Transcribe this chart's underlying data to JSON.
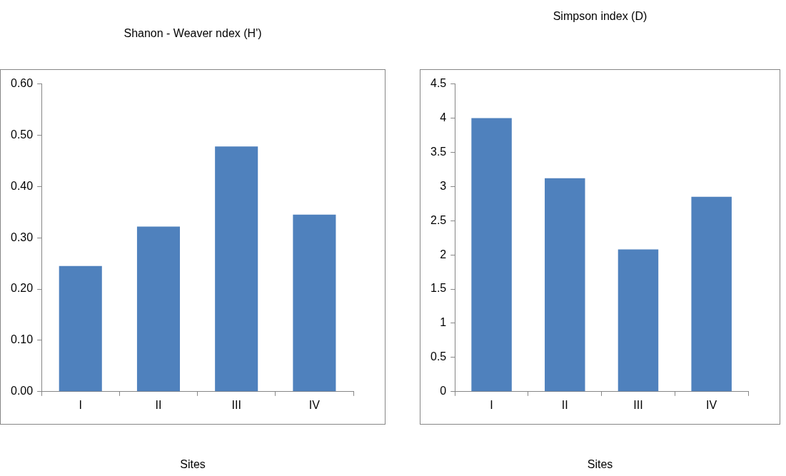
{
  "chart_data": [
    {
      "type": "bar",
      "title": "Shanon - Weaver ndex (H')",
      "xlabel": "Sites",
      "categories": [
        "I",
        "II",
        "III",
        "IV"
      ],
      "values": [
        0.245,
        0.322,
        0.478,
        0.345
      ],
      "color": "#4f81bd",
      "ylim": [
        0,
        0.6
      ],
      "yticks": [
        {
          "value": 0,
          "label": "0.00"
        },
        {
          "value": 0.1,
          "label": "0.10"
        },
        {
          "value": 0.2,
          "label": "0.20"
        },
        {
          "value": 0.3,
          "label": "0.30"
        },
        {
          "value": 0.4,
          "label": "0.40"
        },
        {
          "value": 0.5,
          "label": "0.50"
        },
        {
          "value": 0.6,
          "label": "0.60"
        }
      ],
      "grid": false,
      "legend": false
    },
    {
      "type": "bar",
      "title": "Simpson index (D)",
      "xlabel": "Sites",
      "categories": [
        "I",
        "II",
        "III",
        "IV"
      ],
      "values": [
        4.0,
        3.12,
        2.08,
        2.85
      ],
      "color": "#4f81bd",
      "ylim": [
        0,
        4.5
      ],
      "yticks": [
        0,
        0.5,
        1,
        1.5,
        2,
        2.5,
        3,
        3.5,
        4,
        4.5
      ],
      "grid": false,
      "legend": false
    }
  ]
}
